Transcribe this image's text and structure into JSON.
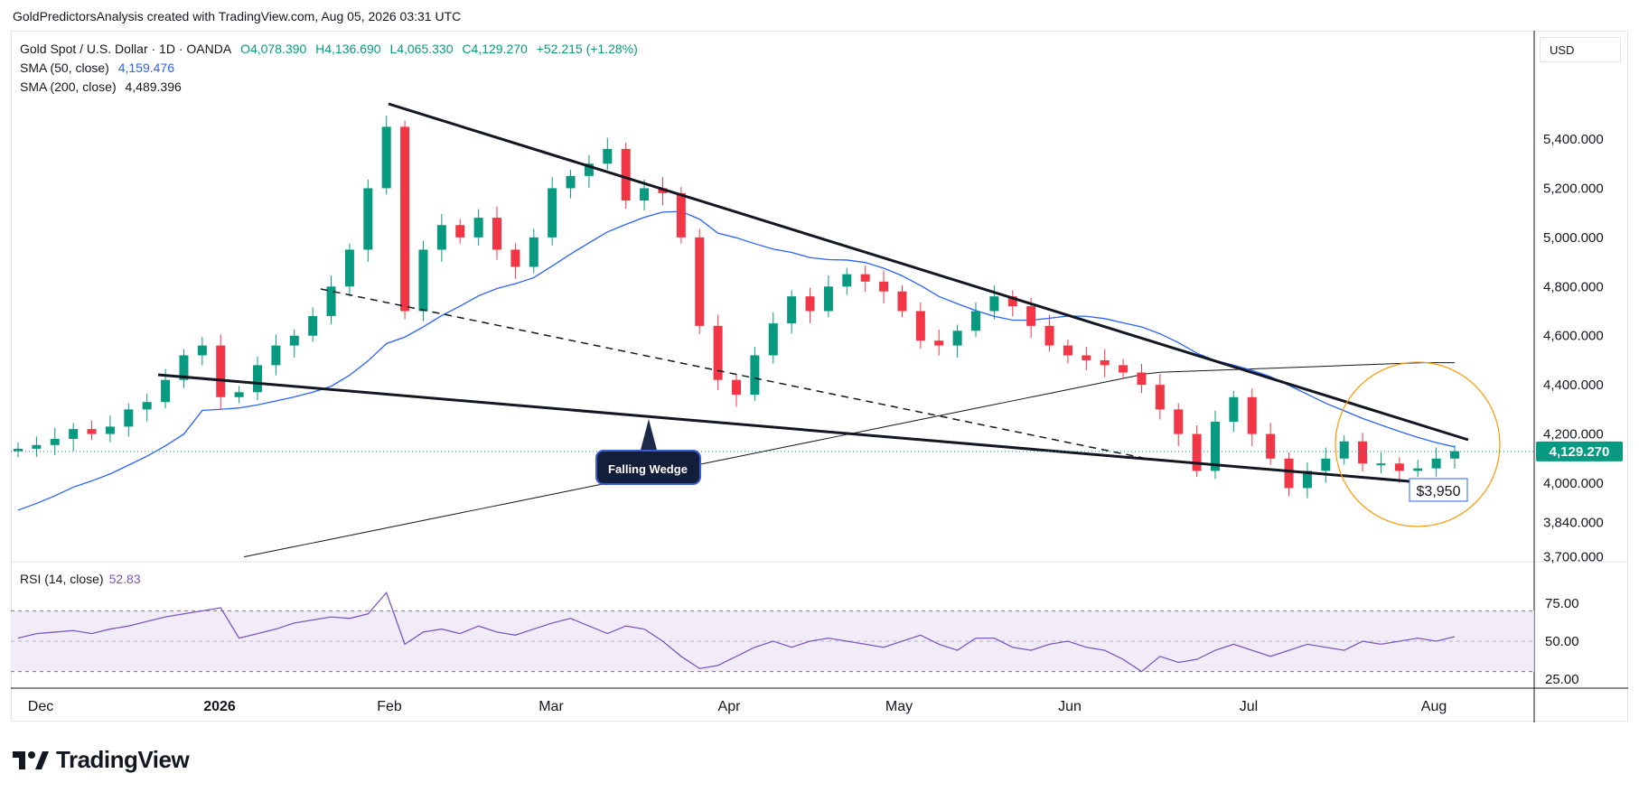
{
  "header": {
    "credit": "GoldPredictorsAnalysis created with TradingView.com, Aug 05, 2026 03:31 UTC"
  },
  "legend": {
    "symbol": "Gold Spot / U.S. Dollar · 1D · OANDA",
    "open": "O4,078.390",
    "high": "H4,136.690",
    "low": "L4,065.330",
    "close": "C4,129.270",
    "change": "+52.215 (+1.28%)",
    "sma50_label": "SMA (50, close)",
    "sma50_value": "4,159.476",
    "sma200_label": "SMA (200, close)",
    "sma200_value": "4,489.396"
  },
  "currency": "USD",
  "price_badge": "4,129.270",
  "annotations": {
    "pattern_label": "Falling Wedge",
    "target_label": "$3,950"
  },
  "rsi": {
    "label": "RSI (14, close)",
    "value": "52.83"
  },
  "branding": {
    "logo_text": "TradingView"
  },
  "colors": {
    "up": "#089981",
    "down": "#f23645",
    "sma50": "#2962ff",
    "sma200": "#131722",
    "rsi": "#7e57c2",
    "circle": "#ff9800"
  },
  "chart_data": [
    {
      "type": "candlestick",
      "title": "Gold Spot / U.S. Dollar · 1D · OANDA",
      "x_tick_labels": [
        "Dec",
        "2026",
        "Feb",
        "Mar",
        "Apr",
        "May",
        "Jun",
        "Jul",
        "Aug"
      ],
      "y_tick_labels": [
        "5,400.000",
        "5,200.000",
        "5,000.000",
        "4,800.000",
        "4,600.000",
        "4,400.000",
        "4,200.000",
        "4,000.000",
        "3,840.000",
        "3,700.000"
      ],
      "y_ticks": [
        5400,
        5200,
        5000,
        4800,
        4600,
        4400,
        4200,
        4000,
        3840,
        3700
      ],
      "last_close": 4129.27,
      "series": [
        {
          "name": "SMA (50, close)",
          "last_value": 4159.476
        },
        {
          "name": "SMA (200, close)",
          "last_value": 4489.396
        }
      ],
      "approx_path": {
        "closes": [
          4140,
          4155,
          4180,
          4220,
          4200,
          4230,
          4300,
          4330,
          4420,
          4520,
          4560,
          4350,
          4370,
          4480,
          4560,
          4600,
          4680,
          4800,
          4950,
          5200,
          5450,
          4700,
          4950,
          5050,
          5000,
          5080,
          4950,
          4880,
          5000,
          5200,
          5250,
          5300,
          5360,
          5150,
          5200,
          5180,
          5000,
          4640,
          4420,
          4360,
          4520,
          4650,
          4760,
          4700,
          4800,
          4850,
          4820,
          4780,
          4700,
          4580,
          4560,
          4620,
          4700,
          4760,
          4720,
          4640,
          4560,
          4520,
          4500,
          4480,
          4450,
          4400,
          4300,
          4200,
          4050,
          4250,
          4350,
          4200,
          4100,
          3980,
          4050,
          4100,
          4170,
          4080,
          4080,
          4050,
          4060,
          4100,
          4130
        ]
      },
      "trendlines": [
        {
          "name": "upper-wedge-line"
        },
        {
          "name": "lower-wedge-line"
        },
        {
          "name": "dashed-midline"
        }
      ],
      "target_level": 3950
    },
    {
      "type": "line",
      "title": "RSI (14, close)",
      "y_tick_labels": [
        "75.00",
        "50.00",
        "25.00"
      ],
      "y_ticks": [
        75,
        50,
        25
      ],
      "band": [
        30,
        70
      ],
      "last_value": 52.83,
      "approx_path": [
        52,
        55,
        56,
        57,
        55,
        58,
        60,
        63,
        66,
        68,
        70,
        72,
        52,
        55,
        58,
        62,
        64,
        66,
        65,
        68,
        82,
        48,
        56,
        58,
        55,
        60,
        56,
        54,
        58,
        62,
        65,
        60,
        55,
        60,
        58,
        50,
        40,
        32,
        34,
        40,
        46,
        50,
        46,
        50,
        52,
        50,
        48,
        46,
        50,
        54,
        48,
        44,
        52,
        52,
        46,
        44,
        48,
        50,
        46,
        44,
        38,
        30,
        40,
        36,
        38,
        44,
        48,
        44,
        40,
        44,
        48,
        46,
        44,
        50,
        48,
        50,
        52,
        50,
        53
      ]
    }
  ]
}
